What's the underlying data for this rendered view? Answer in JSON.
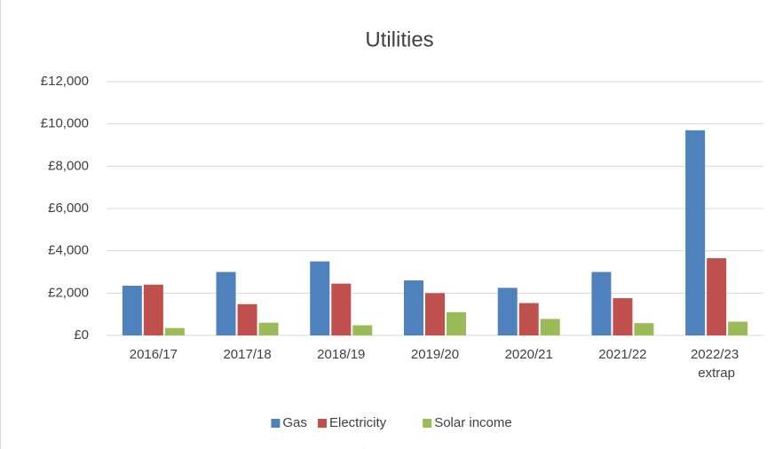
{
  "chart_data": {
    "type": "bar",
    "title": "Utilities",
    "categories": [
      "2016/17",
      "2017/18",
      "2018/19",
      "2019/20",
      "2020/21",
      "2021/22",
      "2022/23 extrap"
    ],
    "series": [
      {
        "name": "Gas",
        "color": "#4f81bd",
        "values": [
          2350,
          3000,
          3500,
          2600,
          2250,
          3000,
          9700
        ]
      },
      {
        "name": "Electricity",
        "color": "#c0504d",
        "values": [
          2400,
          1480,
          2450,
          2000,
          1530,
          1760,
          3650
        ]
      },
      {
        "name": "Solar income",
        "color": "#9bbb59",
        "values": [
          350,
          600,
          480,
          1100,
          780,
          580,
          650
        ]
      }
    ],
    "ylim": [
      0,
      12000
    ],
    "yticks": [
      {
        "value": 0,
        "label": "£0"
      },
      {
        "value": 2000,
        "label": "£2,000"
      },
      {
        "value": 4000,
        "label": "£4,000"
      },
      {
        "value": 6000,
        "label": "£6,000"
      },
      {
        "value": 8000,
        "label": "£8,000"
      },
      {
        "value": 10000,
        "label": "£10,000"
      },
      {
        "value": 12000,
        "label": "£12,000"
      }
    ],
    "grid": true,
    "legend": "bottom"
  }
}
